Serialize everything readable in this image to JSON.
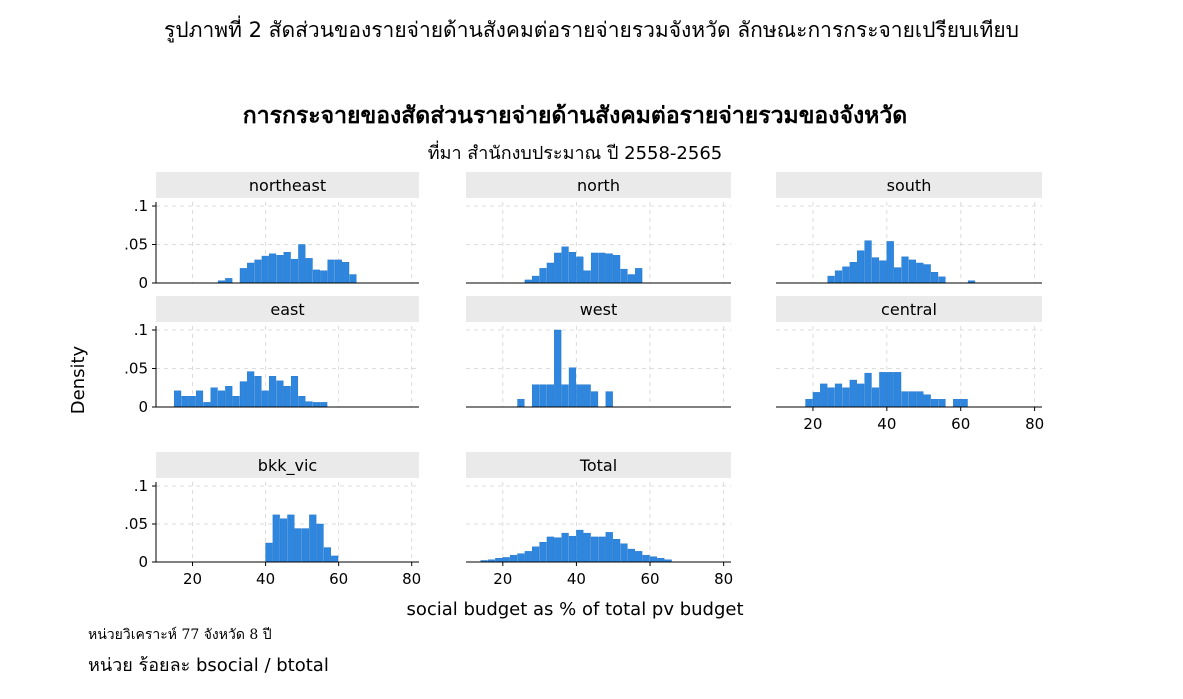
{
  "figure_caption": "รูปภาพที่ 2 สัดส่วนของรายจ่ายด้านสังคมต่อรายจ่ายรวมจังหวัด ลักษณะการกระจายเปรียบเทียบ",
  "notes": {
    "unit_of_analysis": "หน่วยวิเคราะห์ 77 จังหวัด 8 ปี",
    "unit": "หน่วย ร้อยละ  bsocial / btotal"
  },
  "chart_data": {
    "type": "bar",
    "title": "การกระจายของสัดส่วนรายจ่ายด้านสังคมต่อรายจ่ายรวมของจังหวัด",
    "subtitle": "ที่มา สำนักงบประมาณ ปี 2558-2565",
    "xlabel": "social budget as % of total pv budget",
    "ylabel": "Density",
    "xlim": [
      10,
      82
    ],
    "ylim": [
      0,
      0.1
    ],
    "xticks": [
      20,
      40,
      60,
      80
    ],
    "yticks": [
      {
        "v": 0,
        "label": "0"
      },
      {
        "v": 0.05,
        "label": ".05"
      },
      {
        "v": 0.1,
        "label": ".1"
      }
    ],
    "grid": true,
    "bar_color": "#2e86de",
    "strip_color": "#eaeaea",
    "panels": [
      {
        "name": "northeast",
        "bins": [
          [
            27,
            29,
            0.003
          ],
          [
            29,
            31,
            0.006
          ],
          [
            33,
            35,
            0.019
          ],
          [
            35,
            37,
            0.026
          ],
          [
            37,
            39,
            0.03
          ],
          [
            39,
            41,
            0.035
          ],
          [
            41,
            43,
            0.038
          ],
          [
            43,
            45,
            0.036
          ],
          [
            45,
            47,
            0.04
          ],
          [
            47,
            49,
            0.031
          ],
          [
            49,
            51,
            0.05
          ],
          [
            51,
            53,
            0.032
          ],
          [
            53,
            55,
            0.017
          ],
          [
            55,
            57,
            0.016
          ],
          [
            57,
            59,
            0.03
          ],
          [
            59,
            61,
            0.03
          ],
          [
            61,
            63,
            0.027
          ],
          [
            63,
            65,
            0.011
          ]
        ]
      },
      {
        "name": "north",
        "bins": [
          [
            26,
            28,
            0.004
          ],
          [
            28,
            30,
            0.009
          ],
          [
            30,
            32,
            0.019
          ],
          [
            32,
            34,
            0.026
          ],
          [
            34,
            36,
            0.039
          ],
          [
            36,
            38,
            0.047
          ],
          [
            38,
            40,
            0.04
          ],
          [
            40,
            42,
            0.034
          ],
          [
            42,
            44,
            0.016
          ],
          [
            44,
            46,
            0.039
          ],
          [
            46,
            48,
            0.039
          ],
          [
            48,
            50,
            0.038
          ],
          [
            50,
            52,
            0.036
          ],
          [
            52,
            54,
            0.018
          ],
          [
            54,
            56,
            0.011
          ],
          [
            56,
            58,
            0.019
          ]
        ]
      },
      {
        "name": "south",
        "bins": [
          [
            24,
            26,
            0.009
          ],
          [
            26,
            28,
            0.016
          ],
          [
            28,
            30,
            0.021
          ],
          [
            30,
            32,
            0.027
          ],
          [
            32,
            34,
            0.042
          ],
          [
            34,
            36,
            0.055
          ],
          [
            36,
            38,
            0.033
          ],
          [
            38,
            40,
            0.029
          ],
          [
            40,
            42,
            0.054
          ],
          [
            42,
            44,
            0.02
          ],
          [
            44,
            46,
            0.034
          ],
          [
            46,
            48,
            0.03
          ],
          [
            48,
            50,
            0.026
          ],
          [
            50,
            52,
            0.024
          ],
          [
            52,
            54,
            0.014
          ],
          [
            54,
            56,
            0.008
          ],
          [
            62,
            64,
            0.003
          ]
        ]
      },
      {
        "name": "east",
        "bins": [
          [
            15,
            17,
            0.021
          ],
          [
            17,
            19,
            0.014
          ],
          [
            19,
            21,
            0.014
          ],
          [
            21,
            23,
            0.021
          ],
          [
            23,
            25,
            0.006
          ],
          [
            25,
            27,
            0.025
          ],
          [
            27,
            29,
            0.021
          ],
          [
            29,
            31,
            0.027
          ],
          [
            31,
            33,
            0.014
          ],
          [
            33,
            35,
            0.033
          ],
          [
            35,
            37,
            0.046
          ],
          [
            37,
            39,
            0.04
          ],
          [
            39,
            41,
            0.021
          ],
          [
            41,
            43,
            0.04
          ],
          [
            43,
            45,
            0.034
          ],
          [
            45,
            47,
            0.027
          ],
          [
            47,
            49,
            0.04
          ],
          [
            49,
            51,
            0.014
          ],
          [
            51,
            53,
            0.007
          ],
          [
            53,
            55,
            0.006
          ],
          [
            55,
            57,
            0.006
          ]
        ]
      },
      {
        "name": "west",
        "bins": [
          [
            24,
            26,
            0.01
          ],
          [
            28,
            30,
            0.029
          ],
          [
            30,
            32,
            0.029
          ],
          [
            32,
            34,
            0.029
          ],
          [
            34,
            36,
            0.1
          ],
          [
            36,
            38,
            0.029
          ],
          [
            38,
            40,
            0.051
          ],
          [
            40,
            42,
            0.029
          ],
          [
            42,
            44,
            0.029
          ],
          [
            44,
            46,
            0.02
          ],
          [
            48,
            50,
            0.02
          ]
        ]
      },
      {
        "name": "central",
        "bins": [
          [
            18,
            20,
            0.01
          ],
          [
            20,
            22,
            0.019
          ],
          [
            22,
            24,
            0.03
          ],
          [
            24,
            26,
            0.025
          ],
          [
            26,
            28,
            0.03
          ],
          [
            28,
            30,
            0.025
          ],
          [
            30,
            32,
            0.035
          ],
          [
            32,
            34,
            0.03
          ],
          [
            34,
            36,
            0.044
          ],
          [
            36,
            38,
            0.025
          ],
          [
            38,
            40,
            0.045
          ],
          [
            40,
            42,
            0.045
          ],
          [
            42,
            44,
            0.045
          ],
          [
            44,
            46,
            0.02
          ],
          [
            46,
            48,
            0.02
          ],
          [
            48,
            50,
            0.02
          ],
          [
            50,
            52,
            0.016
          ],
          [
            52,
            54,
            0.01
          ],
          [
            54,
            56,
            0.01
          ],
          [
            58,
            60,
            0.01
          ],
          [
            60,
            62,
            0.01
          ]
        ]
      },
      {
        "name": "bkk_vic",
        "bins": [
          [
            40,
            42,
            0.025
          ],
          [
            42,
            44,
            0.062
          ],
          [
            44,
            46,
            0.057
          ],
          [
            46,
            48,
            0.062
          ],
          [
            48,
            50,
            0.044
          ],
          [
            50,
            52,
            0.044
          ],
          [
            52,
            54,
            0.062
          ],
          [
            54,
            56,
            0.05
          ],
          [
            56,
            58,
            0.019
          ],
          [
            58,
            60,
            0.008
          ]
        ]
      },
      {
        "name": "Total",
        "bins": [
          [
            14,
            16,
            0.002
          ],
          [
            16,
            18,
            0.003
          ],
          [
            18,
            20,
            0.005
          ],
          [
            20,
            22,
            0.006
          ],
          [
            22,
            24,
            0.009
          ],
          [
            24,
            26,
            0.011
          ],
          [
            26,
            28,
            0.014
          ],
          [
            28,
            30,
            0.02
          ],
          [
            30,
            32,
            0.026
          ],
          [
            32,
            34,
            0.033
          ],
          [
            34,
            36,
            0.032
          ],
          [
            36,
            38,
            0.038
          ],
          [
            38,
            40,
            0.034
          ],
          [
            40,
            42,
            0.042
          ],
          [
            42,
            44,
            0.038
          ],
          [
            44,
            46,
            0.033
          ],
          [
            46,
            48,
            0.033
          ],
          [
            48,
            50,
            0.039
          ],
          [
            50,
            52,
            0.03
          ],
          [
            52,
            54,
            0.024
          ],
          [
            54,
            56,
            0.017
          ],
          [
            56,
            58,
            0.014
          ],
          [
            58,
            60,
            0.009
          ],
          [
            60,
            62,
            0.007
          ],
          [
            62,
            64,
            0.005
          ],
          [
            64,
            66,
            0.003
          ]
        ]
      }
    ]
  }
}
